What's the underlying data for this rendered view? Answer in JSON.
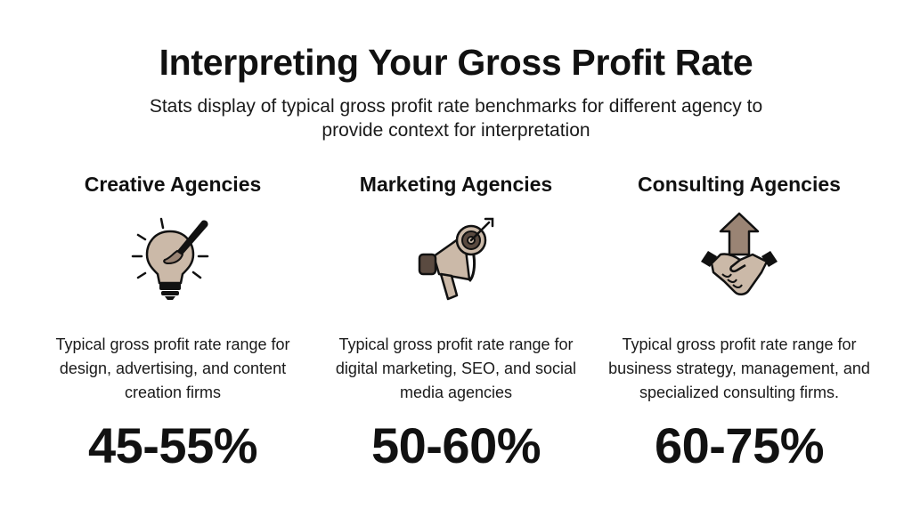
{
  "header": {
    "title": "Interpreting Your Gross Profit Rate",
    "subtitle": "Stats display of typical gross profit rate benchmarks for different agency to provide context for interpretation"
  },
  "colors": {
    "icon_fill": "#cbb9a8",
    "icon_stroke": "#111111"
  },
  "columns": [
    {
      "title": "Creative Agencies",
      "icon": "lightbulb-paintbrush-icon",
      "description": "Typical gross profit rate range for design, advertising, and content creation firms",
      "stat": "45-55%"
    },
    {
      "title": "Marketing Agencies",
      "icon": "megaphone-target-icon",
      "description": "Typical gross profit rate range for digital marketing, SEO, and social media agencies",
      "stat": "50-60%"
    },
    {
      "title": "Consulting Agencies",
      "icon": "handshake-arrow-icon",
      "description": "Typical gross profit rate range for business strategy, management, and specialized consulting firms.",
      "stat": "60-75%"
    }
  ]
}
